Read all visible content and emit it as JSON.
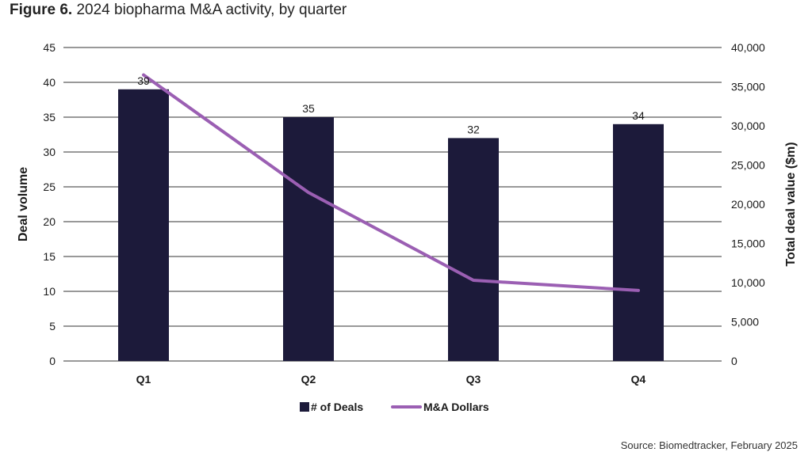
{
  "figure": {
    "label": "Figure 6.",
    "title": "2024 biopharma M&A activity, by quarter"
  },
  "source": "Source: Biomedtracker, February 2025",
  "colors": {
    "bar": "#1c1a3a",
    "line": "#9b5fb3",
    "grid": "#333333"
  },
  "chart_data": {
    "type": "bar",
    "title": "2024 biopharma M&A activity, by quarter",
    "categories": [
      "Q1",
      "Q2",
      "Q3",
      "Q4"
    ],
    "series": [
      {
        "name": "# of Deals",
        "type": "bar",
        "axis": "left",
        "values": [
          39,
          35,
          32,
          34
        ]
      },
      {
        "name": "M&A Dollars",
        "type": "line",
        "axis": "right",
        "values": [
          36500,
          21500,
          10300,
          9000
        ]
      }
    ],
    "ylabel": "Deal volume",
    "ylabel_right": "Total deal value ($m)",
    "ylim": [
      0,
      45
    ],
    "ylim_right": [
      0,
      40000
    ],
    "yticks": [
      "0",
      "5",
      "10",
      "15",
      "20",
      "25",
      "30",
      "35",
      "40",
      "45"
    ],
    "yticks_right": [
      "0",
      "5,000",
      "10,000",
      "15,000",
      "20,000",
      "25,000",
      "30,000",
      "35,000",
      "40,000"
    ],
    "data_labels": [
      "39",
      "35",
      "32",
      "34"
    ],
    "grid": true,
    "legend_position": "bottom-center"
  }
}
